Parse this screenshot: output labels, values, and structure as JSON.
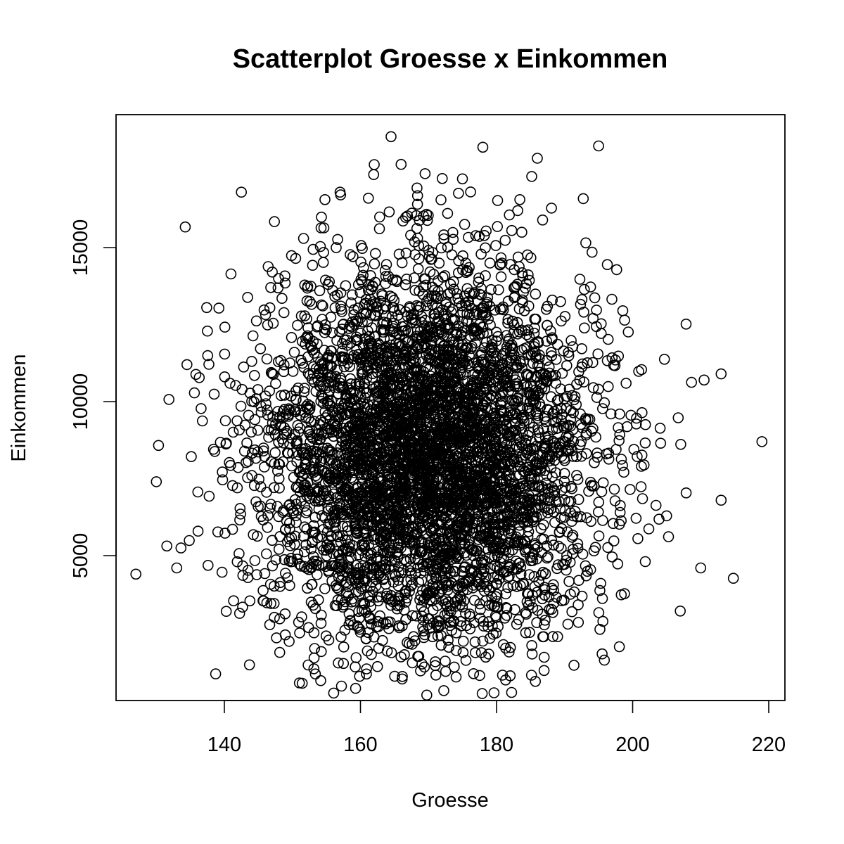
{
  "chart_data": {
    "type": "scatter",
    "title": "Scatterplot Groesse x Einkommen",
    "xlabel": "Groesse",
    "ylabel": "Einkommen",
    "xlim": [
      123,
      221
    ],
    "ylim": [
      500,
      19000
    ],
    "x_ticks": [
      140,
      160,
      180,
      200,
      220
    ],
    "y_ticks": [
      5000,
      10000,
      15000
    ],
    "x_tick_labels": [
      "140",
      "160",
      "180",
      "200",
      "220"
    ],
    "y_tick_labels": [
      "5000",
      "10000",
      "15000"
    ],
    "grid": false,
    "marker": "open-circle",
    "colors": {
      "points": "#000000",
      "axes": "#000000",
      "background": "#ffffff"
    },
    "point_count_estimate": 5000,
    "distribution": {
      "x_mean": 170,
      "x_sd": 12,
      "y_mean": 8300,
      "y_sd": 3000
    },
    "notable_points": [
      {
        "x": 127,
        "y": 4400
      },
      {
        "x": 130,
        "y": 7400
      },
      {
        "x": 133,
        "y": 4600
      },
      {
        "x": 134.5,
        "y": 11200
      },
      {
        "x": 142.5,
        "y": 16800
      },
      {
        "x": 157,
        "y": 16800
      },
      {
        "x": 164.5,
        "y": 18600
      },
      {
        "x": 169.5,
        "y": 17400
      },
      {
        "x": 186,
        "y": 17900
      },
      {
        "x": 195,
        "y": 18300
      },
      {
        "x": 182,
        "y": 1100
      },
      {
        "x": 162.5,
        "y": 1400
      },
      {
        "x": 157.5,
        "y": 1500
      },
      {
        "x": 187,
        "y": 1700
      },
      {
        "x": 207,
        "y": 3200
      },
      {
        "x": 210,
        "y": 4600
      },
      {
        "x": 213,
        "y": 6800
      },
      {
        "x": 213,
        "y": 10900
      },
      {
        "x": 219,
        "y": 8700
      },
      {
        "x": 210.5,
        "y": 10700
      }
    ]
  }
}
